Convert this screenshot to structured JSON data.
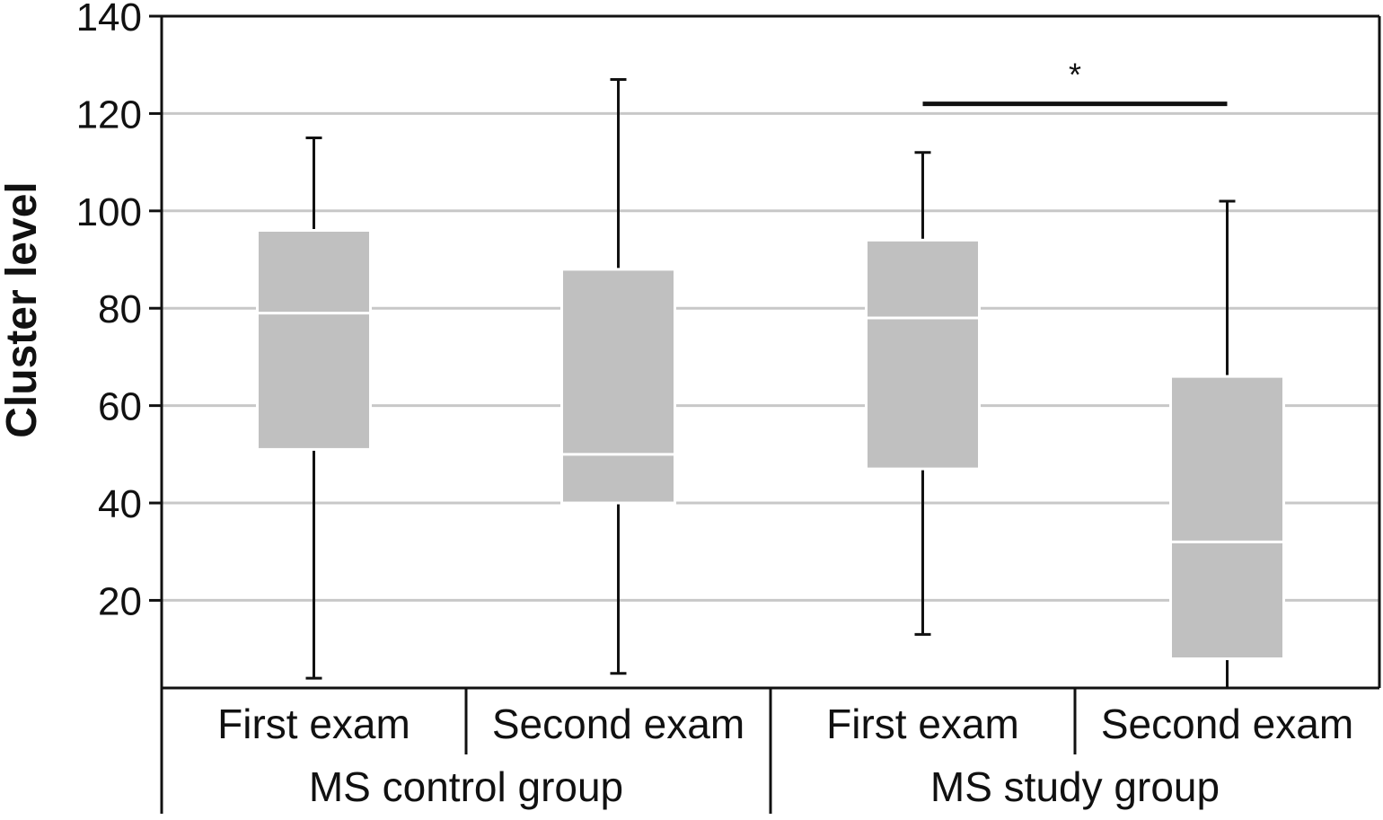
{
  "chart_data": {
    "type": "box",
    "ylabel": "Cluster level",
    "ylim": [
      2,
      140
    ],
    "yticks": [
      20,
      40,
      60,
      80,
      100,
      120,
      140
    ],
    "grid": true,
    "colors": {
      "box": "#c0c0c0",
      "median": "#ffffff",
      "whisker": "#111111",
      "grid": "#c8c8c8",
      "axis": "#111111"
    },
    "groups": [
      {
        "label": "MS control group",
        "categories": [
          "First exam",
          "Second exam"
        ]
      },
      {
        "label": "MS study group",
        "categories": [
          "First exam",
          "Second exam"
        ]
      }
    ],
    "boxes": [
      {
        "group": "MS control group",
        "category": "First exam",
        "min": 4,
        "q1": 51,
        "median": 79,
        "q3": 96,
        "max": 115
      },
      {
        "group": "MS control group",
        "category": "Second exam",
        "min": 5,
        "q1": 40,
        "median": 50,
        "q3": 88,
        "max": 127
      },
      {
        "group": "MS study group",
        "category": "First exam",
        "min": 13,
        "q1": 47,
        "median": 78,
        "q3": 94,
        "max": 112
      },
      {
        "group": "MS study group",
        "category": "Second exam",
        "min": 2,
        "q1": 8,
        "median": 32,
        "q3": 66,
        "max": 102
      }
    ],
    "significance": {
      "between": [
        "MS study group / First exam",
        "MS study group / Second exam"
      ],
      "label": "*",
      "y": 122
    }
  }
}
